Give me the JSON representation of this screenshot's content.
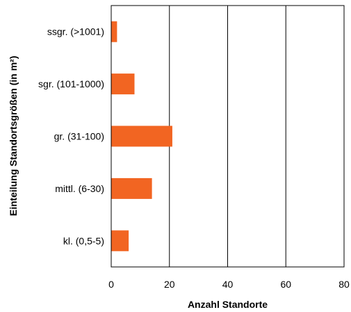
{
  "chart_data": {
    "type": "bar",
    "orientation": "horizontal",
    "title": "",
    "xlabel": "Anzahl Standorte",
    "ylabel": "Einteilung Standortsgrößen (in m²)",
    "categories": [
      "ssgr. (>1001)",
      "sgr. (101-1000)",
      "gr. (31-100)",
      "mittl. (6-30)",
      "kl. (0,5-5)"
    ],
    "values": [
      2,
      8,
      21,
      14,
      6
    ],
    "xlim": [
      0,
      80
    ],
    "xticks": [
      "0",
      "20",
      "40",
      "60",
      "80"
    ],
    "grid": "vertical",
    "legend": "none",
    "bar_color": "#f26522"
  }
}
